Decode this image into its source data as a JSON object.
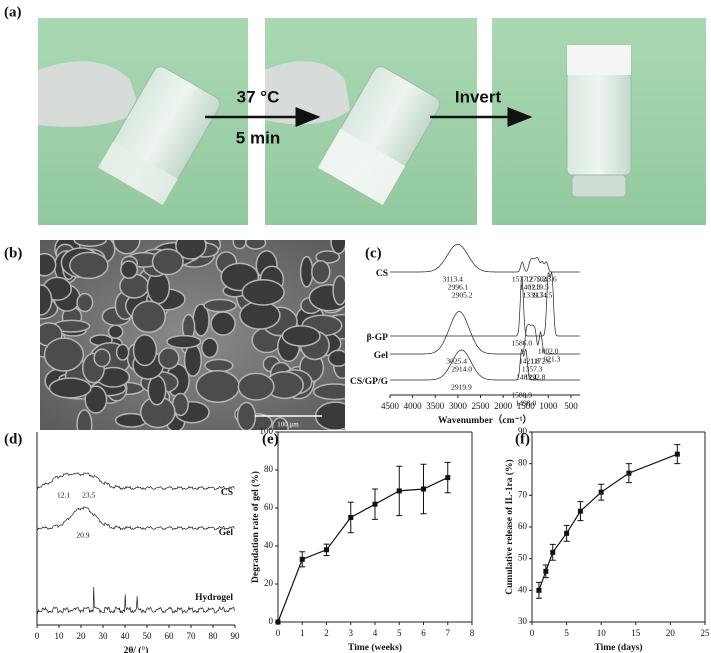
{
  "panels": {
    "a": {
      "label": "(a)",
      "step1_top": "37 °C",
      "step1_bottom": "5 min",
      "step2": "Invert"
    },
    "b": {
      "label": "(b)",
      "scale_bar": "100 μm"
    }
  },
  "chart_data": [
    {
      "type": "spectrum",
      "panel_label": "(c)",
      "x_label": "Wavenumber（cm⁻¹）",
      "xlim": [
        4500,
        300
      ],
      "xticks": [
        4500,
        4000,
        3500,
        3000,
        2500,
        2000,
        1500,
        1000,
        500
      ],
      "series": [
        {
          "name": "CS",
          "peaks": [
            3113.4,
            2996.1,
            2905.2,
            1577.2,
            1401.3,
            1339.7,
            1275.2,
            1219.5,
            1134.5,
            1043.6
          ]
        },
        {
          "name": "β-GP",
          "peaks": [
            {
              "value": 1586,
              "label": "1586.0"
            },
            {
              "value": 1002,
              "label": "1002.0"
            },
            921.3
          ]
        },
        {
          "name": "Gel",
          "peaks": [
            3025.4,
            {
              "value": 2914,
              "label": "2914.0"
            },
            1483.4,
            1421.8,
            1357.3,
            1292.8,
            1172.6
          ]
        },
        {
          "name": "CS/GP/G",
          "peaks": [
            2919.9,
            1588.9,
            {
              "value": 1498,
              "label": "1498.0"
            }
          ]
        }
      ]
    },
    {
      "type": "spectrum",
      "panel_label": "(d)",
      "x_label": "2θ/ (°)",
      "xlim": [
        0,
        90
      ],
      "xticks": [
        0,
        10,
        20,
        30,
        40,
        50,
        60,
        70,
        80,
        90
      ],
      "series": [
        {
          "name": "CS",
          "peaks": [
            12.1,
            23.5
          ]
        },
        {
          "name": "Gel",
          "peaks": [
            20.9
          ]
        },
        {
          "name": "Hydrogel",
          "peaks": []
        }
      ]
    },
    {
      "type": "line",
      "panel_label": "(e)",
      "x_label": "Time (weeks)",
      "y_label": "Degradation rate of gel (%)",
      "x": [
        0,
        1,
        2,
        3,
        4,
        5,
        6,
        7
      ],
      "values": [
        0,
        33,
        38,
        55,
        62,
        69,
        70,
        76
      ],
      "errors": [
        0,
        4,
        3,
        8,
        8,
        13,
        13,
        8
      ],
      "xlim": [
        0,
        8
      ],
      "xticks": [
        0,
        1,
        2,
        3,
        4,
        5,
        6,
        7,
        8
      ],
      "ylim": [
        0,
        100
      ],
      "yticks": [
        0,
        20,
        40,
        60,
        80,
        100
      ],
      "color": "#111111"
    },
    {
      "type": "line",
      "panel_label": "(f)",
      "x_label": "Time (days)",
      "y_label": "Cumulative release of IL-1ra (%)",
      "x": [
        1,
        2,
        3,
        5,
        7,
        10,
        14,
        21
      ],
      "values": [
        40,
        46,
        52,
        58,
        65,
        71,
        77,
        83
      ],
      "errors": [
        2.5,
        2,
        2.5,
        2.5,
        3,
        2.5,
        3,
        3
      ],
      "xlim": [
        0,
        25
      ],
      "xticks": [
        0,
        5,
        10,
        15,
        20,
        25
      ],
      "ylim": [
        30,
        90
      ],
      "yticks": [
        30,
        40,
        50,
        60,
        70,
        80,
        90
      ],
      "color": "#111111"
    }
  ]
}
